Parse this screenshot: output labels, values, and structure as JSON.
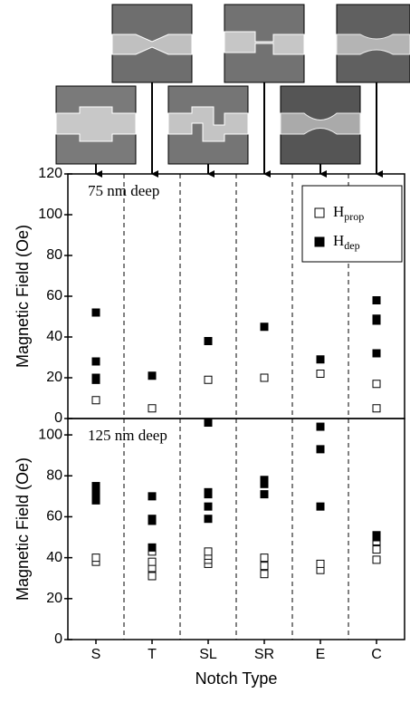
{
  "chart_data": [
    {
      "type": "scatter",
      "annotation": "75 nm deep",
      "ylabel": "Magnetic Field (Oe)",
      "categories": [
        "S",
        "T",
        "SL",
        "SR",
        "E",
        "C"
      ],
      "ylim": [
        0,
        120
      ],
      "yticks": [
        0,
        20,
        40,
        60,
        80,
        100,
        120
      ],
      "series": [
        {
          "name": "H",
          "subscript": "prop",
          "filled": false,
          "color": "#000000",
          "x": [
            "S",
            "S",
            "S",
            "T",
            "SL",
            "SR",
            "E",
            "C",
            "C"
          ],
          "values": [
            9,
            19,
            20,
            5,
            19,
            20,
            22,
            5,
            17
          ]
        },
        {
          "name": "H",
          "subscript": "dep",
          "filled": true,
          "color": "#000000",
          "x": [
            "S",
            "S",
            "S",
            "S",
            "T",
            "SL",
            "SR",
            "E",
            "C",
            "C",
            "C",
            "C"
          ],
          "values": [
            52,
            28,
            20,
            19,
            21,
            38,
            45,
            29,
            58,
            49,
            48,
            32
          ]
        }
      ]
    },
    {
      "type": "scatter",
      "annotation": "125 nm deep",
      "ylabel": "Magnetic Field (Oe)",
      "xlabel": "Notch Type",
      "categories": [
        "S",
        "T",
        "SL",
        "SR",
        "E",
        "C"
      ],
      "ylim": [
        0,
        108
      ],
      "yticks": [
        0,
        20,
        40,
        60,
        80,
        100
      ],
      "series": [
        {
          "name": "H",
          "subscript": "prop",
          "filled": false,
          "color": "#000000",
          "x": [
            "S",
            "S",
            "T",
            "T",
            "T",
            "T",
            "SL",
            "SL",
            "SL",
            "SL",
            "SR",
            "SR",
            "SR",
            "E",
            "E",
            "C",
            "C",
            "C"
          ],
          "values": [
            38,
            40,
            31,
            35,
            38,
            43,
            37,
            39,
            41,
            43,
            32,
            36,
            40,
            34,
            37,
            39,
            44,
            48
          ]
        },
        {
          "name": "H",
          "subscript": "dep",
          "filled": true,
          "color": "#000000",
          "x": [
            "S",
            "S",
            "S",
            "S",
            "T",
            "T",
            "T",
            "T",
            "SL",
            "SL",
            "SL",
            "SL",
            "SL",
            "SR",
            "SR",
            "SR",
            "E",
            "E",
            "E",
            "C",
            "C"
          ],
          "values": [
            75,
            73,
            70,
            68,
            70,
            59,
            58,
            45,
            106,
            72,
            71,
            65,
            59,
            78,
            76,
            71,
            104,
            93,
            65,
            51,
            50
          ]
        }
      ]
    }
  ]
}
